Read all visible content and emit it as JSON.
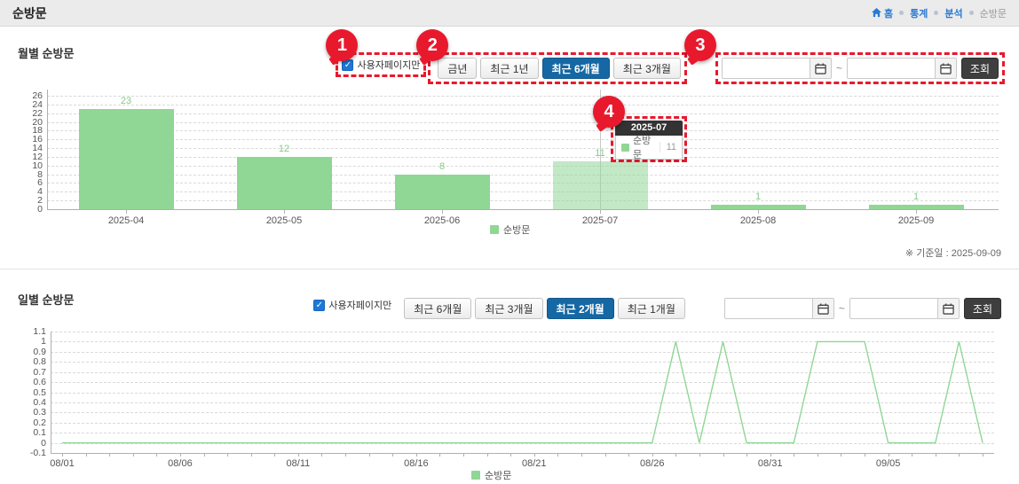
{
  "page": {
    "title": "순방문",
    "breadcrumb": {
      "home": "홈",
      "items": [
        "통계",
        "분석",
        "순방문"
      ]
    }
  },
  "annotations": {
    "badges": [
      "1",
      "2",
      "3",
      "4"
    ]
  },
  "monthly": {
    "section_title": "월별 순방문",
    "checkbox_label": "사용자페이지만",
    "checkbox_checked": true,
    "check_glyph": "✓",
    "range_buttons": [
      {
        "label": "금년",
        "selected": false
      },
      {
        "label": "최근 1년",
        "selected": false
      },
      {
        "label": "최근 6개월",
        "selected": true
      },
      {
        "label": "최근 3개월",
        "selected": false
      }
    ],
    "date_from": "",
    "date_to": "",
    "tilde": "~",
    "search_label": "조회",
    "legend": "순방문",
    "base_date_note": "※ 기준일 : 2025-09-09",
    "tooltip": {
      "title": "2025-07",
      "series": "순방문",
      "value": "11"
    }
  },
  "daily": {
    "section_title": "일별 순방문",
    "checkbox_label": "사용자페이지만",
    "checkbox_checked": true,
    "check_glyph": "✓",
    "range_buttons": [
      {
        "label": "최근 6개월",
        "selected": false
      },
      {
        "label": "최근 3개월",
        "selected": false
      },
      {
        "label": "최근 2개월",
        "selected": true
      },
      {
        "label": "최근 1개월",
        "selected": false
      }
    ],
    "date_from": "",
    "date_to": "",
    "tilde": "~",
    "search_label": "조회",
    "legend": "순방문"
  },
  "chart_data": [
    {
      "type": "bar",
      "title": "월별 순방문",
      "categories": [
        "2025-04",
        "2025-05",
        "2025-06",
        "2025-07",
        "2025-08",
        "2025-09"
      ],
      "values": [
        23,
        12,
        8,
        11,
        1,
        1
      ],
      "series_name": "순방문",
      "highlighted_index": 3,
      "ylim": [
        0,
        26
      ],
      "ytick_step": 2,
      "grid": true,
      "legend_position": "bottom",
      "bar_color": "#90d695",
      "label_color": "#85cc85"
    },
    {
      "type": "line",
      "title": "일별 순방문",
      "x": [
        "08/01",
        "08/02",
        "08/03",
        "08/04",
        "08/05",
        "08/06",
        "08/07",
        "08/08",
        "08/09",
        "08/10",
        "08/11",
        "08/12",
        "08/13",
        "08/14",
        "08/15",
        "08/16",
        "08/17",
        "08/18",
        "08/19",
        "08/20",
        "08/21",
        "08/22",
        "08/23",
        "08/24",
        "08/25",
        "08/26",
        "08/27",
        "08/28",
        "08/29",
        "08/30",
        "08/31",
        "09/01",
        "09/02",
        "09/03",
        "09/04",
        "09/05",
        "09/06",
        "09/07",
        "09/08",
        "09/09"
      ],
      "values": [
        0,
        0,
        0,
        0,
        0,
        0,
        0,
        0,
        0,
        0,
        0,
        0,
        0,
        0,
        0,
        0,
        0,
        0,
        0,
        0,
        0,
        0,
        0,
        0,
        0,
        0,
        1,
        0,
        1,
        0,
        0,
        0,
        1,
        1,
        1,
        0,
        0,
        0,
        1,
        0
      ],
      "series_name": "순방문",
      "xtick_labels": [
        "08/01",
        "08/06",
        "08/11",
        "08/16",
        "08/21",
        "08/26",
        "08/31",
        "09/05"
      ],
      "xtick_every": 5,
      "ylim": [
        -0.1,
        1.1
      ],
      "ytick_step": 0.1,
      "grid": true,
      "legend_position": "bottom",
      "line_color": "#8fd694"
    }
  ]
}
